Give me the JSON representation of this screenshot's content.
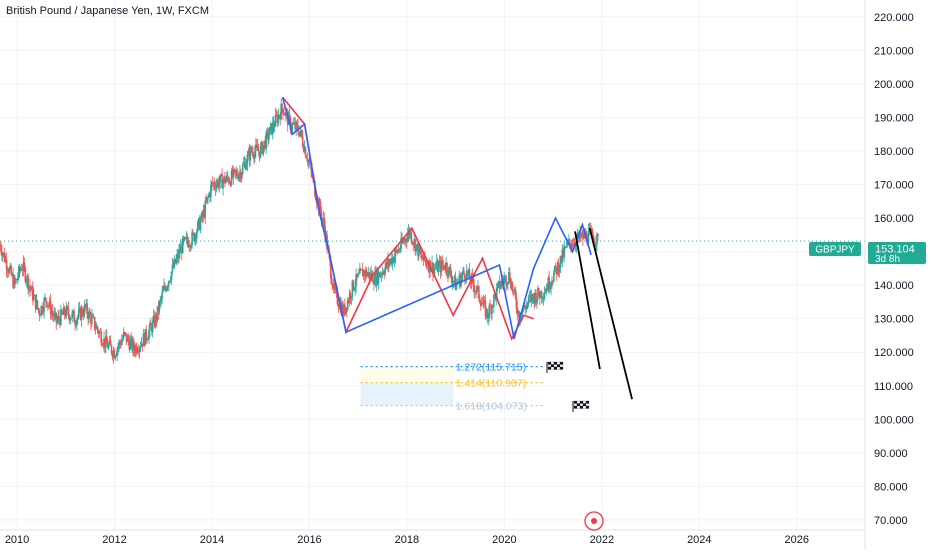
{
  "chart_data": {
    "type": "candlestick",
    "title": "British Pound / Japanese Yen, 1W, FXCM",
    "y_ticks": [
      "70.000",
      "80.000",
      "90.000",
      "100.000",
      "110.000",
      "120.000",
      "130.000",
      "140.000",
      "150.000",
      "160.000",
      "170.000",
      "180.000",
      "190.000",
      "200.000",
      "210.000",
      "220.000"
    ],
    "x_ticks": [
      "2010",
      "2012",
      "2014",
      "2016",
      "2018",
      "2020",
      "2022",
      "2024",
      "2026"
    ],
    "ylim": [
      67,
      225
    ],
    "xlim": [
      2009.65,
      2027.4
    ],
    "grid": true,
    "price": [
      [
        2009.65,
        152
      ],
      [
        2009.8,
        146
      ],
      [
        2009.95,
        140
      ],
      [
        2010.1,
        146
      ],
      [
        2010.3,
        138
      ],
      [
        2010.45,
        132
      ],
      [
        2010.6,
        136
      ],
      [
        2010.8,
        129
      ],
      [
        2011.0,
        132
      ],
      [
        2011.2,
        130
      ],
      [
        2011.4,
        133
      ],
      [
        2011.6,
        128
      ],
      [
        2011.8,
        123
      ],
      [
        2012.0,
        120
      ],
      [
        2012.2,
        125
      ],
      [
        2012.4,
        121
      ],
      [
        2012.55,
        123
      ],
      [
        2012.7,
        126
      ],
      [
        2012.85,
        130
      ],
      [
        2013.0,
        138
      ],
      [
        2013.2,
        145
      ],
      [
        2013.4,
        152
      ],
      [
        2013.6,
        154
      ],
      [
        2013.8,
        160
      ],
      [
        2014.0,
        170
      ],
      [
        2014.2,
        171
      ],
      [
        2014.4,
        172
      ],
      [
        2014.6,
        174
      ],
      [
        2014.8,
        180
      ],
      [
        2015.0,
        180
      ],
      [
        2015.2,
        186
      ],
      [
        2015.45,
        193
      ],
      [
        2015.6,
        188
      ],
      [
        2015.8,
        186
      ],
      [
        2016.0,
        176
      ],
      [
        2016.15,
        166
      ],
      [
        2016.3,
        158
      ],
      [
        2016.5,
        138
      ],
      [
        2016.7,
        132
      ],
      [
        2016.9,
        140
      ],
      [
        2017.1,
        144
      ],
      [
        2017.35,
        142
      ],
      [
        2017.6,
        146
      ],
      [
        2017.85,
        151
      ],
      [
        2018.05,
        156
      ],
      [
        2018.3,
        148
      ],
      [
        2018.55,
        145
      ],
      [
        2018.8,
        146
      ],
      [
        2019.0,
        140
      ],
      [
        2019.2,
        144
      ],
      [
        2019.45,
        138
      ],
      [
        2019.65,
        131
      ],
      [
        2019.9,
        140
      ],
      [
        2020.1,
        143
      ],
      [
        2020.3,
        131
      ],
      [
        2020.55,
        136
      ],
      [
        2020.8,
        138
      ],
      [
        2021.05,
        144
      ],
      [
        2021.3,
        152
      ],
      [
        2021.55,
        154
      ],
      [
        2021.8,
        155
      ],
      [
        2021.92,
        153
      ]
    ],
    "zigzag_blue": [
      [
        2015.45,
        196
      ],
      [
        2015.65,
        185
      ],
      [
        2015.9,
        188
      ],
      [
        2016.2,
        162
      ],
      [
        2016.4,
        150
      ],
      [
        2016.75,
        126
      ],
      [
        2019.9,
        146
      ],
      [
        2020.2,
        124
      ],
      [
        2020.6,
        145
      ],
      [
        2021.05,
        160
      ],
      [
        2021.4,
        150
      ],
      [
        2021.6,
        158
      ],
      [
        2021.78,
        149
      ]
    ],
    "zigzag_red": [
      [
        2015.45,
        196
      ],
      [
        2015.9,
        188
      ],
      [
        2016.2,
        162
      ],
      [
        2016.4,
        150
      ],
      [
        2016.75,
        126
      ],
      [
        2017.3,
        143
      ],
      [
        2018.1,
        157
      ],
      [
        2018.95,
        131
      ],
      [
        2019.55,
        148
      ],
      [
        2020.15,
        124
      ],
      [
        2020.4,
        131
      ],
      [
        2020.6,
        130
      ]
    ],
    "projection_lines": [
      [
        [
          2021.45,
          156
        ],
        [
          2021.96,
          115
        ]
      ],
      [
        [
          2021.75,
          157
        ],
        [
          2022.62,
          106
        ]
      ]
    ],
    "current_price": 153.104
  },
  "price_badge": {
    "symbol": "GBPJPY",
    "price": "153.104",
    "countdown": "3d 8h",
    "color": "#22ab94"
  },
  "fib_levels": [
    {
      "label": "1.272(115.715)",
      "value": 115.715,
      "color": "#2196f3"
    },
    {
      "label": "1.414(110.937)",
      "value": 110.937,
      "color": "#fbc02d"
    },
    {
      "label": "1.618(104.073)",
      "value": 104.073,
      "color": "#b2c6dd"
    }
  ],
  "colors": {
    "up": "#26a69a",
    "down": "#ef5350",
    "zigzag_blue": "#2962ff",
    "zigzag_red": "#f23645",
    "projection": "#000000",
    "grid": "#f0f3fa",
    "axis_text": "#131722",
    "price_line": "#22ab94"
  },
  "icons": [
    "flag-icon-1",
    "flag-icon-2",
    "target-icon"
  ]
}
